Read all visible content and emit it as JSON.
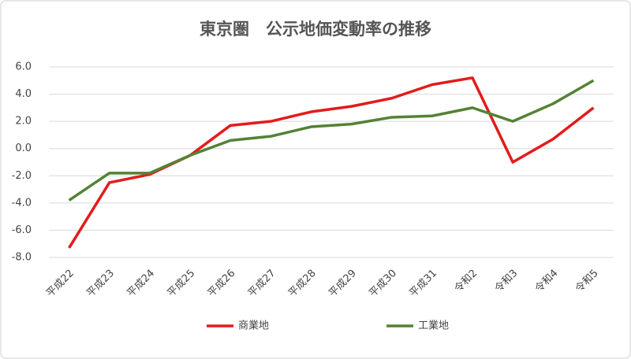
{
  "chart_data": {
    "type": "line",
    "title": "東京圏　公示地価変動率の推移",
    "categories": [
      "平成22",
      "平成23",
      "平成24",
      "平成25",
      "平成26",
      "平成27",
      "平成28",
      "平成29",
      "平成30",
      "平成31",
      "令和2",
      "令和3",
      "令和4",
      "令和5"
    ],
    "series": [
      {
        "name": "商業地",
        "color": "#e31b1b",
        "values": [
          -7.3,
          -2.5,
          -1.9,
          -0.5,
          1.7,
          2.0,
          2.7,
          3.1,
          3.7,
          4.7,
          5.2,
          -1.0,
          0.7,
          3.0
        ]
      },
      {
        "name": "工業地",
        "color": "#548235",
        "values": [
          -3.8,
          -1.8,
          -1.8,
          -0.5,
          0.6,
          0.9,
          1.6,
          1.8,
          2.3,
          2.4,
          3.0,
          2.0,
          3.3,
          5.0
        ]
      }
    ],
    "ylim": [
      -8,
      6
    ],
    "yticks": [
      {
        "value": -8,
        "label": "-8.0"
      },
      {
        "value": -6,
        "label": "-6.0"
      },
      {
        "value": -4,
        "label": "-4.0"
      },
      {
        "value": -2,
        "label": "-2.0"
      },
      {
        "value": 0,
        "label": "0.0"
      },
      {
        "value": 2,
        "label": "2.0"
      },
      {
        "value": 4,
        "label": "4.0"
      },
      {
        "value": 6,
        "label": "6.0"
      }
    ],
    "grid": true,
    "legend": "bottom"
  }
}
